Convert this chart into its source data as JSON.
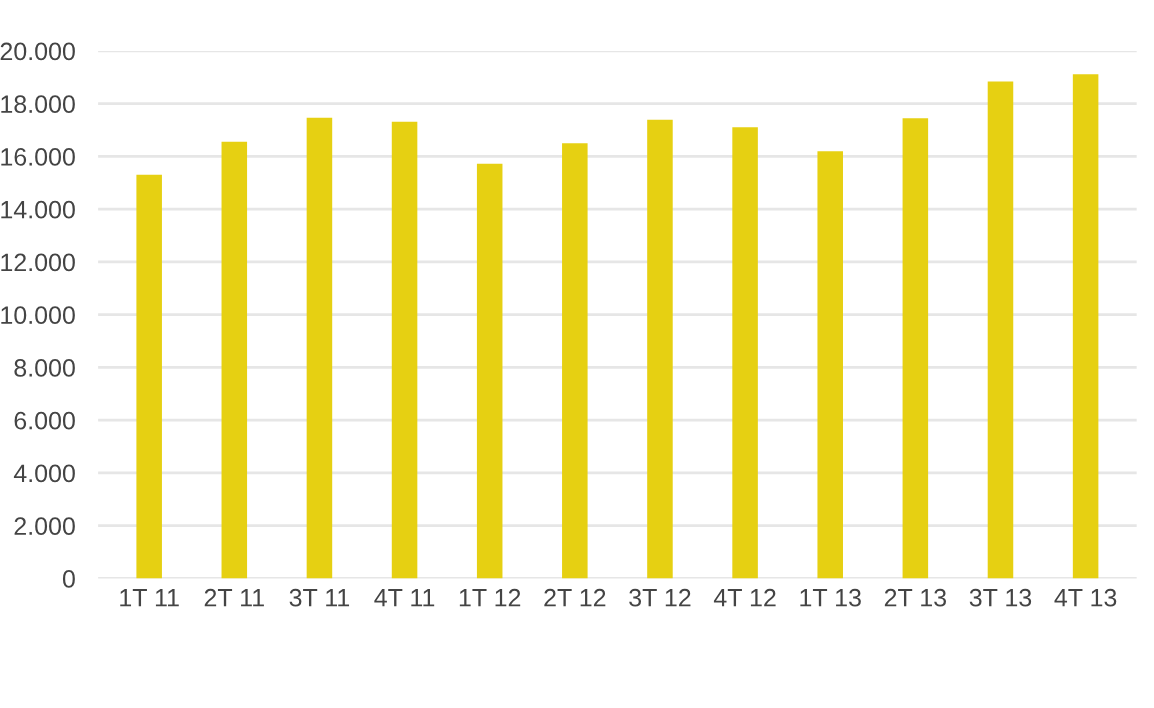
{
  "chart_data": {
    "type": "bar",
    "categories": [
      "1T 11",
      "2T 11",
      "3T 11",
      "4T 11",
      "1T 12",
      "2T 12",
      "3T 12",
      "4T 12",
      "1T 13",
      "2T 13",
      "3T 13",
      "4T 13"
    ],
    "values": [
      15310,
      16560,
      17470,
      17320,
      15720,
      16500,
      17390,
      17110,
      16200,
      17450,
      18840,
      19120
    ],
    "color": "#e6d012",
    "ylim": [
      0,
      20000
    ],
    "yticks": [
      0,
      {
        "value": 2000,
        "label": "2.000"
      },
      {
        "value": 4000,
        "label": "4.000"
      },
      {
        "value": 6000,
        "label": "6.000"
      },
      {
        "value": 8000,
        "label": "8.000"
      },
      {
        "value": 10000,
        "label": "10.000"
      },
      {
        "value": 12000,
        "label": "12.000"
      },
      {
        "value": 14000,
        "label": "14.000"
      },
      {
        "value": 16000,
        "label": "16.000"
      },
      {
        "value": 18000,
        "label": "18.000"
      },
      {
        "value": 20000,
        "label": "20.000"
      }
    ],
    "grid": "y"
  }
}
